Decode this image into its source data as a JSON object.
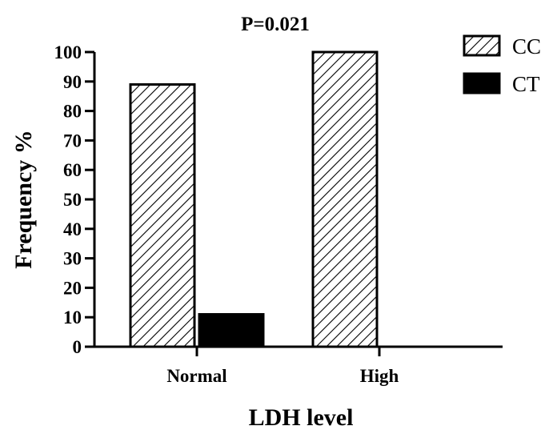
{
  "chart_data": {
    "type": "bar",
    "title": "P=0.021",
    "xlabel": "LDH level",
    "ylabel": "Frequency %",
    "categories": [
      "Normal",
      "High"
    ],
    "series": [
      {
        "name": "CC",
        "pattern": "diagonal-hatch",
        "values": [
          89,
          100
        ]
      },
      {
        "name": "CT",
        "pattern": "solid",
        "color": "#000000",
        "values": [
          11,
          0
        ]
      }
    ],
    "ylim": [
      0,
      100
    ],
    "yticks": [
      "0",
      "10",
      "20",
      "30",
      "40",
      "50",
      "60",
      "70",
      "80",
      "90",
      "100"
    ],
    "grid": false,
    "legend_position": "top-right"
  }
}
